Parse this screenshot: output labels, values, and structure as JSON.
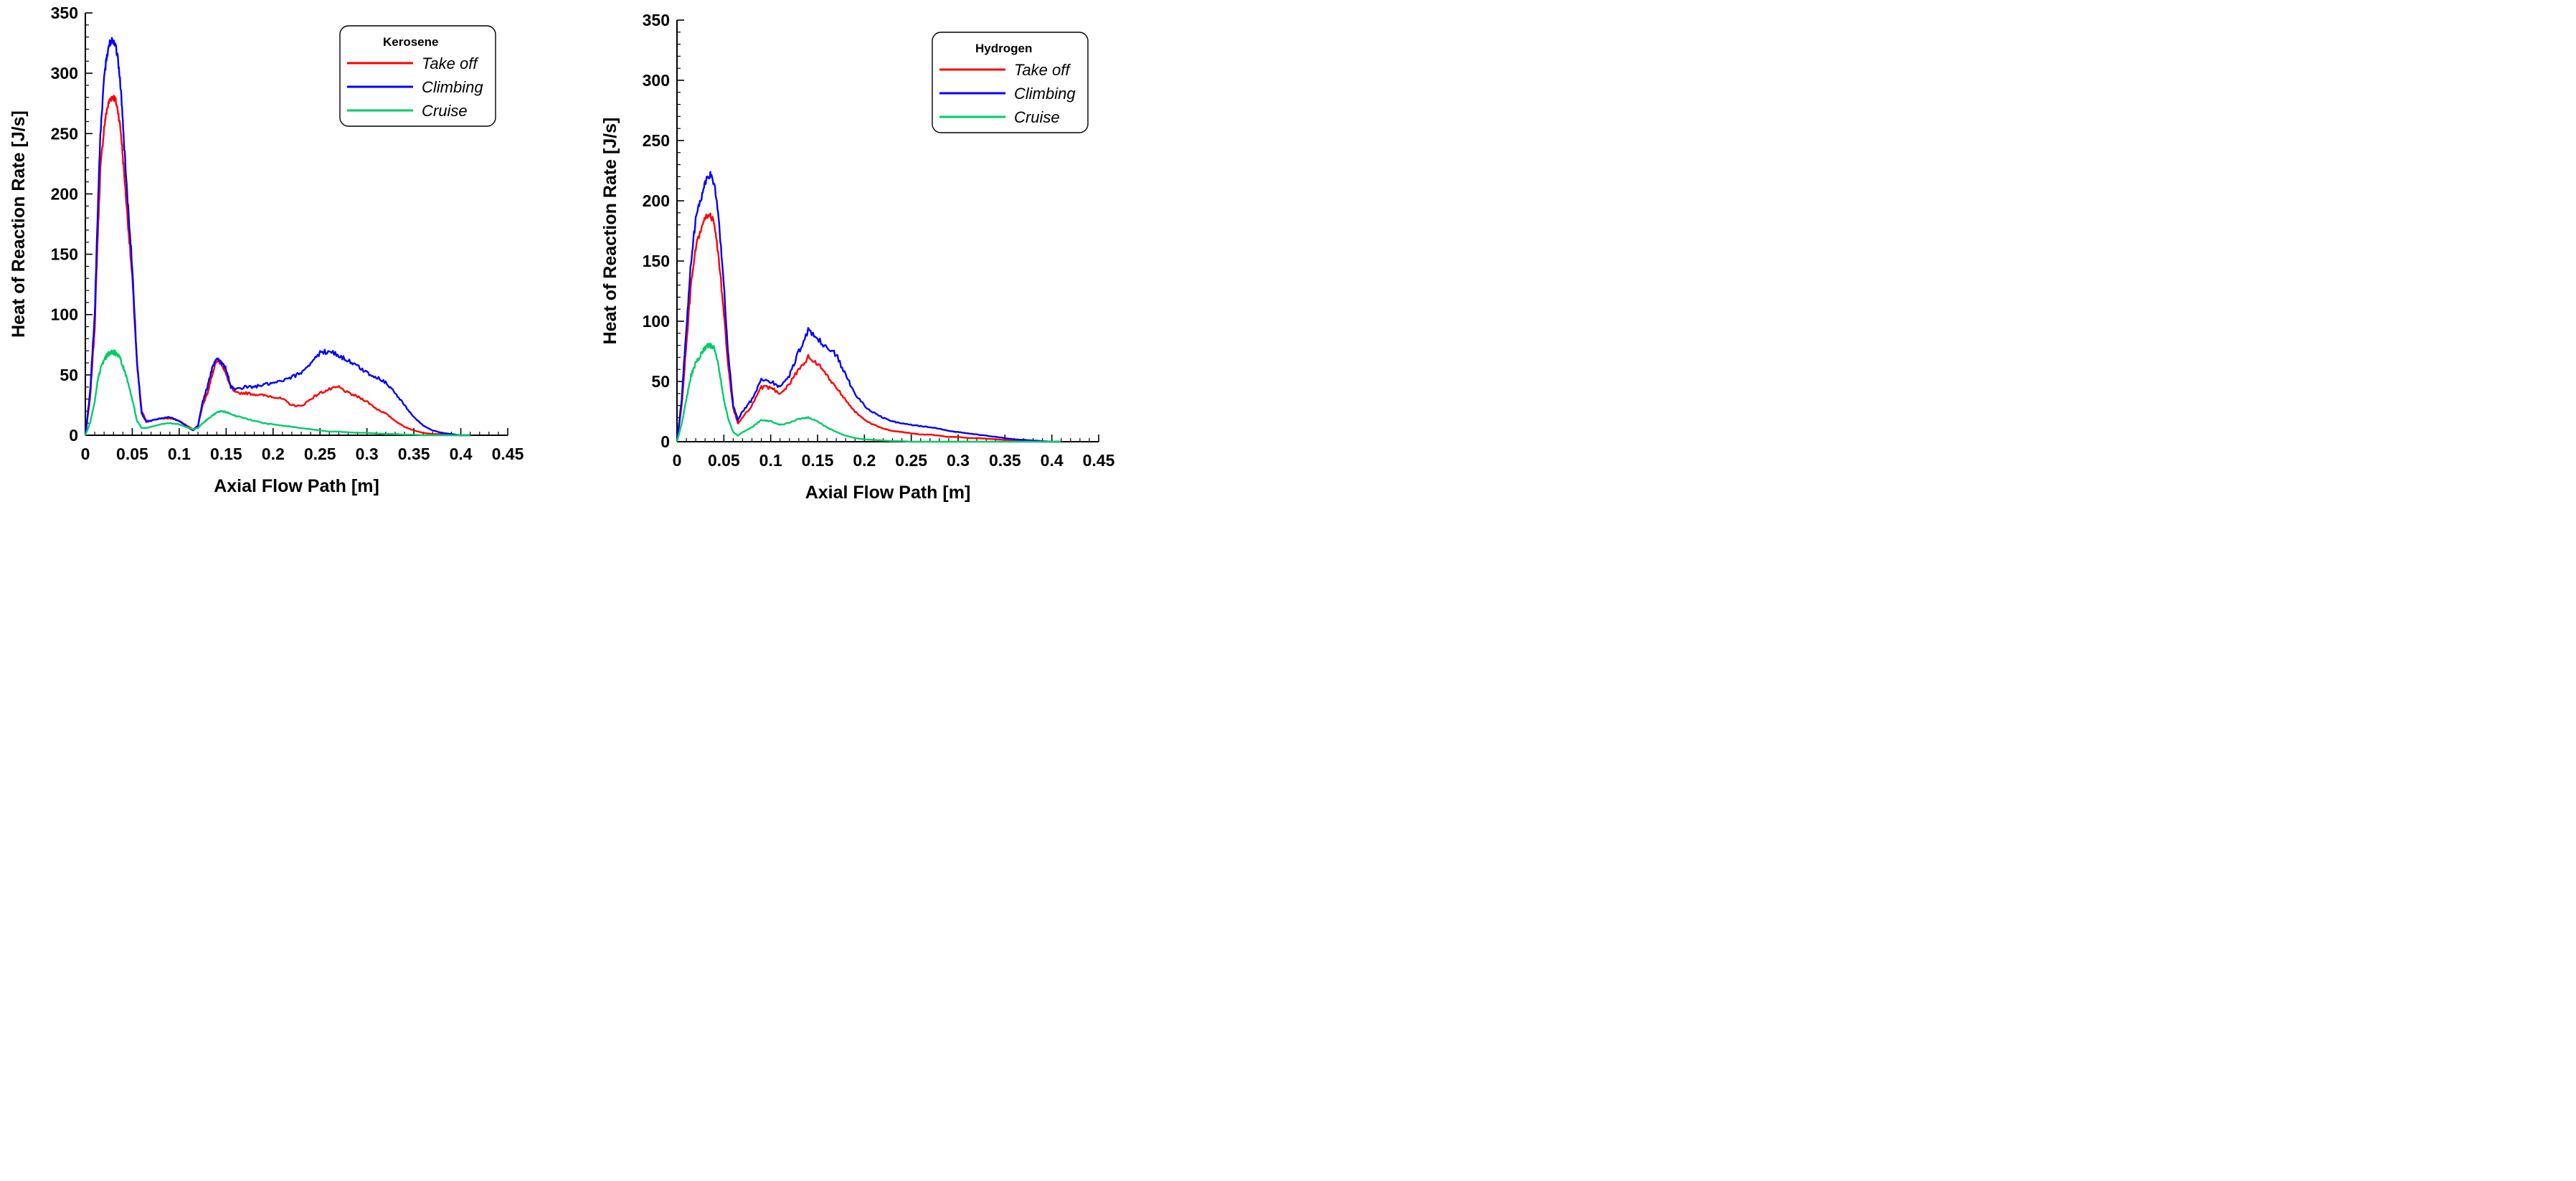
{
  "chart_data": [
    {
      "type": "line",
      "panel": "left",
      "xlabel": "Axial Flow Path [m]",
      "ylabel": "Heat of Reaction Rate [J/s]",
      "xlim": [
        0,
        0.45
      ],
      "ylim": [
        0,
        350
      ],
      "xticks": [
        0,
        0.05,
        0.1,
        0.15,
        0.2,
        0.25,
        0.3,
        0.35,
        0.4,
        0.45
      ],
      "xtick_labels": [
        "0",
        "0.05",
        "0.1",
        "0.15",
        "0.2",
        "0.25",
        "0.3",
        "0.35",
        "0.4",
        "0.45"
      ],
      "yticks": [
        0,
        50,
        100,
        150,
        200,
        250,
        300,
        350
      ],
      "ytick_labels": [
        "0",
        "50",
        "100",
        "150",
        "200",
        "250",
        "300",
        "350"
      ],
      "grid": false,
      "legend": {
        "title": "Kerosene",
        "placement": "top-right"
      },
      "series": [
        {
          "name": "Take off",
          "color": "#ff0000",
          "x": [
            0,
            0.005,
            0.01,
            0.013,
            0.016,
            0.02,
            0.023,
            0.026,
            0.029,
            0.032,
            0.035,
            0.038,
            0.041,
            0.045,
            0.05,
            0.055,
            0.06,
            0.065,
            0.07,
            0.08,
            0.09,
            0.1,
            0.11,
            0.115,
            0.12,
            0.125,
            0.13,
            0.135,
            0.14,
            0.145,
            0.15,
            0.155,
            0.16,
            0.17,
            0.18,
            0.19,
            0.2,
            0.21,
            0.22,
            0.23,
            0.24,
            0.25,
            0.26,
            0.27,
            0.28,
            0.29,
            0.3,
            0.31,
            0.32,
            0.33,
            0.34,
            0.35,
            0.36,
            0.37,
            0.38,
            0.39,
            0.4,
            0.41
          ],
          "y": [
            0,
            30,
            90,
            160,
            220,
            255,
            270,
            278,
            281,
            278,
            268,
            250,
            220,
            180,
            130,
            60,
            20,
            12,
            12,
            14,
            14,
            12,
            7,
            5,
            8,
            25,
            35,
            50,
            62,
            60,
            50,
            40,
            35,
            35,
            34,
            33,
            32,
            30,
            25,
            24,
            30,
            35,
            38,
            40,
            35,
            32,
            28,
            22,
            18,
            12,
            7,
            4,
            2,
            1,
            1,
            0,
            0,
            0
          ]
        },
        {
          "name": "Climbing",
          "color": "#0000ff",
          "x": [
            0,
            0.005,
            0.01,
            0.013,
            0.016,
            0.02,
            0.023,
            0.026,
            0.029,
            0.032,
            0.035,
            0.038,
            0.041,
            0.045,
            0.05,
            0.055,
            0.06,
            0.065,
            0.07,
            0.08,
            0.09,
            0.1,
            0.11,
            0.115,
            0.12,
            0.125,
            0.13,
            0.135,
            0.14,
            0.145,
            0.15,
            0.155,
            0.16,
            0.17,
            0.18,
            0.19,
            0.2,
            0.21,
            0.22,
            0.23,
            0.24,
            0.25,
            0.26,
            0.27,
            0.28,
            0.29,
            0.3,
            0.31,
            0.32,
            0.33,
            0.34,
            0.35,
            0.36,
            0.37,
            0.38,
            0.39,
            0.4,
            0.41
          ],
          "y": [
            0,
            35,
            100,
            180,
            250,
            295,
            315,
            325,
            328,
            325,
            310,
            285,
            245,
            195,
            140,
            60,
            18,
            11,
            12,
            14,
            15,
            12,
            6,
            4,
            8,
            28,
            40,
            55,
            65,
            60,
            55,
            40,
            38,
            40,
            40,
            42,
            43,
            45,
            48,
            52,
            60,
            68,
            70,
            66,
            62,
            57,
            52,
            48,
            44,
            35,
            25,
            15,
            8,
            4,
            2,
            1,
            0,
            0
          ]
        },
        {
          "name": "Cruise",
          "color": "#00cc66",
          "x": [
            0,
            0.005,
            0.01,
            0.013,
            0.016,
            0.02,
            0.023,
            0.026,
            0.029,
            0.032,
            0.035,
            0.038,
            0.041,
            0.045,
            0.05,
            0.055,
            0.06,
            0.065,
            0.07,
            0.08,
            0.09,
            0.1,
            0.11,
            0.115,
            0.12,
            0.125,
            0.13,
            0.135,
            0.14,
            0.145,
            0.15,
            0.155,
            0.16,
            0.17,
            0.18,
            0.19,
            0.2,
            0.21,
            0.22,
            0.23,
            0.24,
            0.25,
            0.26,
            0.27,
            0.28,
            0.29,
            0.3,
            0.31,
            0.32,
            0.33,
            0.34,
            0.35,
            0.36,
            0.37,
            0.38,
            0.39,
            0.4,
            0.41
          ],
          "y": [
            0,
            10,
            28,
            45,
            55,
            62,
            66,
            68,
            69,
            68,
            66,
            62,
            55,
            45,
            30,
            12,
            6,
            6,
            7,
            9,
            10,
            9,
            6,
            5,
            6,
            10,
            13,
            16,
            19,
            20,
            19,
            18,
            16,
            14,
            12,
            10,
            9,
            8,
            7,
            6,
            5,
            4,
            3,
            3,
            2.5,
            2,
            2,
            1.5,
            1,
            1,
            0.5,
            0.5,
            0,
            0,
            0,
            0,
            0,
            0
          ]
        }
      ]
    },
    {
      "type": "line",
      "panel": "right",
      "xlabel": "Axial Flow Path [m]",
      "ylabel": "Heat of Reaction Rate [J/s]",
      "xlim": [
        0,
        0.45
      ],
      "ylim": [
        0,
        350
      ],
      "xticks": [
        0,
        0.05,
        0.1,
        0.15,
        0.2,
        0.25,
        0.3,
        0.35,
        0.4,
        0.45
      ],
      "xtick_labels": [
        "0",
        "0.05",
        "0.1",
        "0.15",
        "0.2",
        "0.25",
        "0.3",
        "0.35",
        "0.4",
        "0.45"
      ],
      "yticks": [
        0,
        50,
        100,
        150,
        200,
        250,
        300,
        350
      ],
      "ytick_labels": [
        "0",
        "50",
        "100",
        "150",
        "200",
        "250",
        "300",
        "350"
      ],
      "grid": false,
      "legend": {
        "title": "Hydrogen",
        "placement": "top-right"
      },
      "series": [
        {
          "name": "Take off",
          "color": "#ff0000",
          "x": [
            0,
            0.005,
            0.01,
            0.015,
            0.02,
            0.025,
            0.03,
            0.035,
            0.04,
            0.045,
            0.05,
            0.055,
            0.06,
            0.065,
            0.07,
            0.08,
            0.09,
            0.1,
            0.11,
            0.12,
            0.13,
            0.14,
            0.15,
            0.16,
            0.17,
            0.18,
            0.19,
            0.2,
            0.21,
            0.22,
            0.23,
            0.24,
            0.25,
            0.26,
            0.27,
            0.28,
            0.29,
            0.3,
            0.31,
            0.32,
            0.33,
            0.34,
            0.35,
            0.36,
            0.37,
            0.38,
            0.39,
            0.4,
            0.41
          ],
          "y": [
            0,
            30,
            80,
            130,
            160,
            175,
            185,
            190,
            180,
            150,
            105,
            60,
            28,
            15,
            20,
            30,
            45,
            45,
            40,
            48,
            60,
            70,
            65,
            55,
            45,
            35,
            25,
            18,
            14,
            11,
            9,
            8,
            7,
            6,
            6,
            5,
            4,
            4,
            3,
            3,
            2.5,
            2,
            1.5,
            1,
            0.5,
            0.5,
            0,
            0,
            0
          ]
        },
        {
          "name": "Climbing",
          "color": "#0000ff",
          "x": [
            0,
            0.005,
            0.01,
            0.015,
            0.02,
            0.025,
            0.03,
            0.035,
            0.04,
            0.045,
            0.05,
            0.055,
            0.06,
            0.065,
            0.07,
            0.08,
            0.09,
            0.1,
            0.11,
            0.12,
            0.13,
            0.14,
            0.15,
            0.16,
            0.17,
            0.18,
            0.19,
            0.2,
            0.21,
            0.22,
            0.23,
            0.24,
            0.25,
            0.26,
            0.27,
            0.28,
            0.29,
            0.3,
            0.31,
            0.32,
            0.33,
            0.34,
            0.35,
            0.36,
            0.37,
            0.38,
            0.39,
            0.4,
            0.41
          ],
          "y": [
            0,
            35,
            95,
            150,
            185,
            200,
            215,
            222,
            215,
            180,
            130,
            70,
            30,
            18,
            25,
            35,
            52,
            50,
            45,
            55,
            75,
            92,
            85,
            78,
            72,
            55,
            40,
            30,
            24,
            20,
            17,
            15,
            14,
            13,
            12,
            11,
            9,
            8,
            7,
            6,
            5,
            4,
            3,
            2,
            1.5,
            1,
            0.5,
            0,
            0
          ]
        },
        {
          "name": "Cruise",
          "color": "#00cc66",
          "x": [
            0,
            0.005,
            0.01,
            0.015,
            0.02,
            0.025,
            0.03,
            0.035,
            0.04,
            0.045,
            0.05,
            0.055,
            0.06,
            0.065,
            0.07,
            0.08,
            0.09,
            0.1,
            0.11,
            0.12,
            0.13,
            0.14,
            0.15,
            0.16,
            0.17,
            0.18,
            0.19,
            0.2,
            0.21,
            0.22,
            0.23,
            0.24,
            0.25,
            0.26,
            0.27,
            0.28,
            0.29,
            0.3,
            0.31,
            0.32,
            0.33,
            0.34,
            0.35,
            0.36,
            0.37,
            0.38,
            0.39,
            0.4,
            0.41
          ],
          "y": [
            0,
            15,
            35,
            55,
            65,
            72,
            78,
            80,
            78,
            60,
            35,
            18,
            8,
            5,
            8,
            12,
            18,
            17,
            14,
            16,
            19,
            20,
            17,
            12,
            8,
            5,
            3,
            2,
            1.5,
            1,
            0.5,
            0.5,
            0,
            0,
            0,
            0,
            0,
            0,
            0,
            0,
            0,
            0,
            0,
            0,
            0,
            0,
            0,
            0,
            0
          ]
        }
      ]
    }
  ]
}
